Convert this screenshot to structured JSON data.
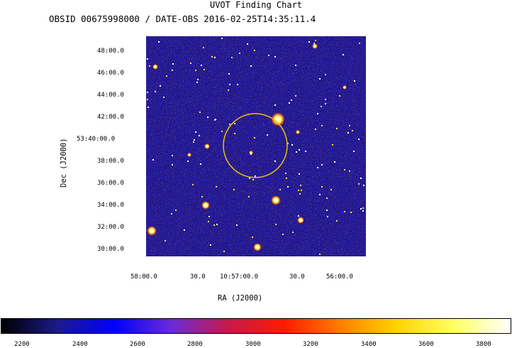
{
  "title": "UVOT Finding Chart",
  "subtitle": "OBSID 00675998000 / DATE-OBS 2016-02-25T14:35:11.4",
  "axes": {
    "dec_label": "Dec (J2000)",
    "ra_label": "RA (J2000)",
    "dec_ticks": [
      "48:00.0",
      "46:00.0",
      "44:00.0",
      "42:00.0",
      "53:40:00.0",
      "38:00.0",
      "36:00.0",
      "34:00.0",
      "32:00.0",
      "30:00.0"
    ],
    "ra_ticks": [
      "58:00.0",
      "30.0",
      "10:57:00.0",
      "30.0",
      "56:00.0"
    ]
  },
  "colorbar": {
    "ticks": [
      "2200",
      "2400",
      "2600",
      "2800",
      "3000",
      "3200",
      "3400",
      "3600",
      "3800"
    ],
    "colors": [
      "#000000",
      "#1a1a8c",
      "#0000ff",
      "#6a2bd6",
      "#c41a4a",
      "#ff1a00",
      "#ff7f00",
      "#ffd400",
      "#ffff66",
      "#ffffff"
    ]
  },
  "overlay": {
    "circle_color": "#e8c400"
  }
}
